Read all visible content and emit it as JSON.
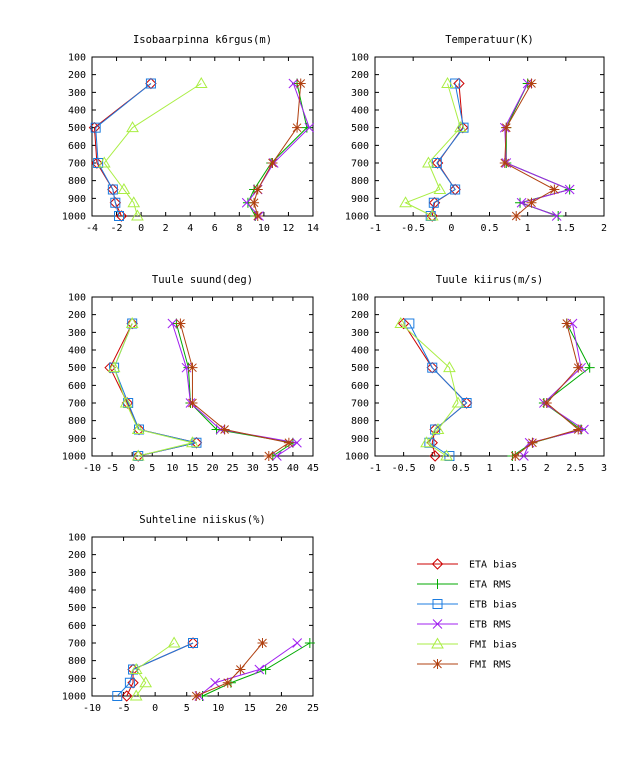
{
  "chart_data": [
    {
      "type": "line",
      "title": "Isobaarpinna k6rgus(m)",
      "xlim": [
        -4,
        14
      ],
      "xticks": [
        -4,
        -2,
        0,
        2,
        4,
        6,
        8,
        10,
        12,
        14
      ],
      "ylim": [
        100,
        1000
      ],
      "yticks": [
        100,
        200,
        300,
        400,
        500,
        600,
        700,
        800,
        900,
        1000
      ],
      "y_inverted": true,
      "levels": [
        1000,
        925,
        850,
        700,
        500,
        250
      ],
      "series": [
        {
          "name": "ETA bias",
          "values": [
            -1.6,
            -2.1,
            -2.3,
            -3.6,
            -3.8,
            0.8
          ]
        },
        {
          "name": "ETA RMS",
          "values": [
            9.3,
            8.7,
            9.2,
            10.6,
            13.5,
            12.7
          ]
        },
        {
          "name": "ETB bias",
          "values": [
            -1.8,
            -2.1,
            -2.3,
            -3.5,
            -3.7,
            0.8
          ]
        },
        {
          "name": "ETB RMS",
          "values": [
            9.6,
            8.6,
            9.5,
            10.8,
            13.7,
            12.4
          ]
        },
        {
          "name": "FMI bias",
          "values": [
            -0.3,
            -0.6,
            -1.4,
            -3.0,
            -0.7,
            4.9
          ]
        },
        {
          "name": "FMI RMS",
          "values": [
            9.5,
            9.2,
            9.5,
            10.7,
            12.7,
            13.0
          ]
        }
      ]
    },
    {
      "type": "line",
      "title": "Temperatuur(K)",
      "xlim": [
        -1,
        2
      ],
      "xticks": [
        -1,
        -0.5,
        0,
        0.5,
        1,
        1.5,
        2
      ],
      "ylim": [
        100,
        1000
      ],
      "yticks": [
        100,
        200,
        300,
        400,
        500,
        600,
        700,
        800,
        900,
        1000
      ],
      "y_inverted": true,
      "levels": [
        1000,
        925,
        850,
        700,
        500,
        250
      ],
      "series": [
        {
          "name": "ETA bias",
          "values": [
            -0.25,
            -0.22,
            0.05,
            -0.18,
            0.15,
            0.1
          ]
        },
        {
          "name": "ETA RMS",
          "values": [
            1.4,
            0.9,
            1.55,
            0.72,
            0.72,
            1.0
          ]
        },
        {
          "name": "ETB bias",
          "values": [
            -0.27,
            -0.23,
            0.05,
            -0.19,
            0.16,
            0.05
          ]
        },
        {
          "name": "ETB RMS",
          "values": [
            1.38,
            0.92,
            1.55,
            0.72,
            0.7,
            1.0
          ]
        },
        {
          "name": "FMI bias",
          "values": [
            -0.25,
            -0.6,
            -0.15,
            -0.3,
            0.12,
            -0.05
          ]
        },
        {
          "name": "FMI RMS",
          "values": [
            0.85,
            1.05,
            1.35,
            0.7,
            0.72,
            1.05
          ]
        }
      ]
    },
    {
      "type": "line",
      "title": "Tuule suund(deg)",
      "xlim": [
        -10,
        45
      ],
      "xticks": [
        -10,
        -5,
        0,
        5,
        10,
        15,
        20,
        25,
        30,
        35,
        40,
        45
      ],
      "ylim": [
        100,
        1000
      ],
      "yticks": [
        100,
        200,
        300,
        400,
        500,
        600,
        700,
        800,
        900,
        1000
      ],
      "y_inverted": true,
      "levels": [
        1000,
        925,
        850,
        700,
        500,
        250
      ],
      "series": [
        {
          "name": "ETA bias",
          "values": [
            1.5,
            16,
            1.7,
            -1.2,
            -5.5,
            0
          ]
        },
        {
          "name": "ETA RMS",
          "values": [
            35,
            40,
            21,
            14.5,
            14,
            11
          ]
        },
        {
          "name": "ETB bias",
          "values": [
            1.5,
            16,
            1.7,
            -1.0,
            -4.5,
            0
          ]
        },
        {
          "name": "ETB RMS",
          "values": [
            36,
            41,
            22,
            14.5,
            13.5,
            10
          ]
        },
        {
          "name": "FMI bias",
          "values": [
            1.5,
            15,
            1.5,
            -1.5,
            -4.5,
            0
          ]
        },
        {
          "name": "FMI RMS",
          "values": [
            34,
            39,
            23,
            15,
            15,
            12
          ]
        }
      ]
    },
    {
      "type": "line",
      "title": "Tuule kiirus(m/s)",
      "xlim": [
        -1,
        3
      ],
      "xticks": [
        -1,
        -0.5,
        0,
        0.5,
        1,
        1.5,
        2,
        2.5,
        3
      ],
      "ylim": [
        100,
        1000
      ],
      "yticks": [
        100,
        200,
        300,
        400,
        500,
        600,
        700,
        800,
        900,
        1000
      ],
      "y_inverted": true,
      "levels": [
        1000,
        925,
        850,
        700,
        500,
        250
      ],
      "series": [
        {
          "name": "ETA bias",
          "values": [
            0.05,
            0.0,
            0.05,
            0.6,
            0.0,
            -0.5
          ]
        },
        {
          "name": "ETA RMS",
          "values": [
            1.4,
            1.75,
            2.6,
            1.95,
            2.75,
            2.35
          ]
        },
        {
          "name": "ETB bias",
          "values": [
            0.3,
            -0.05,
            0.05,
            0.6,
            0.0,
            -0.4
          ]
        },
        {
          "name": "ETB RMS",
          "values": [
            1.6,
            1.7,
            2.65,
            1.95,
            2.6,
            2.45
          ]
        },
        {
          "name": "FMI bias",
          "values": [
            0.25,
            -0.1,
            0.1,
            0.45,
            0.3,
            -0.55
          ]
        },
        {
          "name": "FMI RMS",
          "values": [
            1.45,
            1.75,
            2.55,
            2.0,
            2.55,
            2.35
          ]
        }
      ]
    },
    {
      "type": "line",
      "title": "Suhteline niiskus(%)",
      "xlim": [
        -10,
        25
      ],
      "xticks": [
        -10,
        -5,
        0,
        5,
        10,
        15,
        20,
        25
      ],
      "ylim": [
        100,
        1000
      ],
      "yticks": [
        100,
        200,
        300,
        400,
        500,
        600,
        700,
        800,
        900,
        1000
      ],
      "y_inverted": true,
      "levels": [
        1000,
        925,
        850,
        700
      ],
      "series": [
        {
          "name": "ETA bias",
          "values": [
            -4.5,
            -3.5,
            -3.5,
            6
          ]
        },
        {
          "name": "ETA RMS",
          "values": [
            7.5,
            12,
            17.5,
            24.5
          ]
        },
        {
          "name": "ETB bias",
          "values": [
            -6,
            -4,
            -3.5,
            6
          ]
        },
        {
          "name": "ETB RMS",
          "values": [
            7,
            9.5,
            16.5,
            22.5
          ]
        },
        {
          "name": "FMI bias",
          "values": [
            -3,
            -1.5,
            -3,
            3
          ]
        },
        {
          "name": "FMI RMS",
          "values": [
            6.5,
            11.5,
            13.5,
            17
          ]
        }
      ]
    }
  ],
  "legend": {
    "position": "bottom-right",
    "items": [
      {
        "label": "ETA bias",
        "color": "#cc0000",
        "marker": "diamond"
      },
      {
        "label": "ETA RMS",
        "color": "#00aa00",
        "marker": "plus"
      },
      {
        "label": "ETB bias",
        "color": "#1c7ce0",
        "marker": "square"
      },
      {
        "label": "ETB RMS",
        "color": "#a020f0",
        "marker": "cross"
      },
      {
        "label": "FMI bias",
        "color": "#aaee44",
        "marker": "triangle"
      },
      {
        "label": "FMI RMS",
        "color": "#b04010",
        "marker": "star"
      }
    ]
  }
}
